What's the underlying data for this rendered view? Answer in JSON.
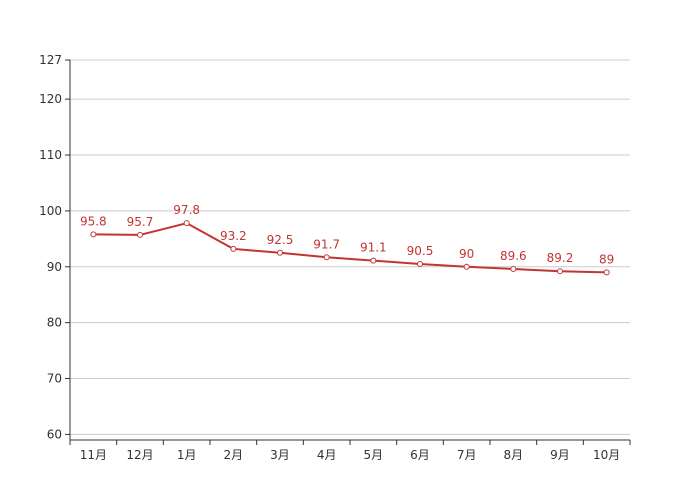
{
  "chart_data": {
    "type": "line",
    "categories": [
      "11月",
      "12月",
      "1月",
      "2月",
      "3月",
      "4月",
      "5月",
      "6月",
      "7月",
      "8月",
      "9月",
      "10月"
    ],
    "series": [
      {
        "values": [
          95.8,
          95.7,
          97.8,
          93.2,
          92.5,
          91.7,
          91.1,
          90.5,
          90,
          89.6,
          89.2,
          89
        ],
        "color": "#c23531"
      }
    ],
    "value_labels": [
      "95.8",
      "95.7",
      "97.8",
      "93.2",
      "92.5",
      "91.7",
      "91.1",
      "90.5",
      "90",
      "89.6",
      "89.2",
      "89"
    ],
    "yticks": [
      60,
      70,
      80,
      90,
      100,
      110,
      120,
      127
    ],
    "ytick_labels": [
      "60",
      "70",
      "80",
      "90",
      "100",
      "110",
      "120",
      "127"
    ],
    "ylim": [
      59,
      127
    ],
    "grid": true,
    "title": "",
    "xlabel": "",
    "ylabel": "",
    "colors": {
      "line": "#c23531",
      "grid": "#cccccc",
      "axis": "#333333",
      "text": "#333333"
    }
  }
}
